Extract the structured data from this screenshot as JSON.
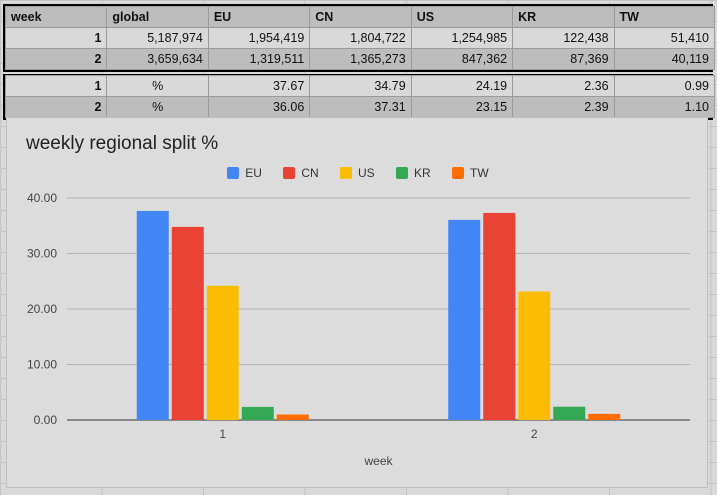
{
  "table": {
    "headers": [
      "week",
      "global",
      "EU",
      "CN",
      "US",
      "KR",
      "TW"
    ],
    "counts": [
      {
        "week": "1",
        "cells": [
          "5,187,974",
          "1,954,419",
          "1,804,722",
          "1,254,985",
          "122,438",
          "51,410"
        ]
      },
      {
        "week": "2",
        "cells": [
          "3,659,634",
          "1,319,511",
          "1,365,273",
          "847,362",
          "87,369",
          "40,119"
        ]
      }
    ],
    "percents": [
      {
        "week": "1",
        "cells": [
          "%",
          "37.67",
          "34.79",
          "24.19",
          "2.36",
          "0.99"
        ]
      },
      {
        "week": "2",
        "cells": [
          "%",
          "36.06",
          "37.31",
          "23.15",
          "2.39",
          "1.10"
        ]
      }
    ]
  },
  "chart_data": {
    "type": "bar",
    "title": "weekly regional split %",
    "xlabel": "week",
    "ylabel": "",
    "categories": [
      "1",
      "2"
    ],
    "ylim": [
      0,
      40
    ],
    "yticks": [
      "0.00",
      "10.00",
      "20.00",
      "30.00",
      "40.00"
    ],
    "grid": true,
    "legend_position": "top",
    "series": [
      {
        "name": "EU",
        "color": "#4285f4",
        "values": [
          37.67,
          36.06
        ]
      },
      {
        "name": "CN",
        "color": "#ea4335",
        "values": [
          34.79,
          37.31
        ]
      },
      {
        "name": "US",
        "color": "#fbbc04",
        "values": [
          24.19,
          23.15
        ]
      },
      {
        "name": "KR",
        "color": "#34a853",
        "values": [
          2.36,
          2.39
        ]
      },
      {
        "name": "TW",
        "color": "#ff6d01",
        "values": [
          0.99,
          1.1
        ]
      }
    ]
  }
}
